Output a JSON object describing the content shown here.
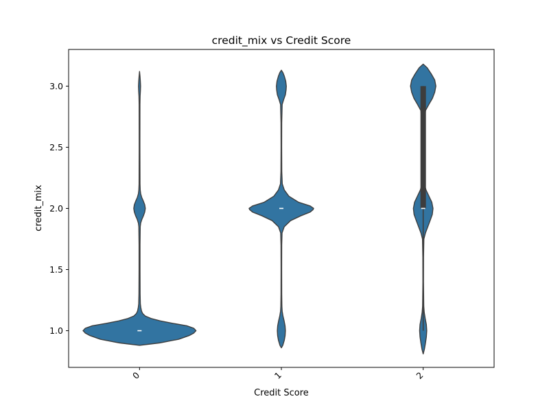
{
  "chart_data": {
    "type": "violin",
    "title": "credit_mix vs Credit Score",
    "xlabel": "Credit Score",
    "ylabel": "credit_mix",
    "categories": [
      "0",
      "1",
      "2"
    ],
    "ylim": [
      0.7,
      3.3
    ],
    "yticks": [
      1.0,
      1.5,
      2.0,
      2.5,
      3.0
    ],
    "ytick_labels": [
      "1.0",
      "1.5",
      "2.0",
      "2.5",
      "3.0"
    ],
    "xtick_rotation": 45,
    "grid": false,
    "colors": {
      "violin_fill": "#3274a1",
      "violin_edge": "#3d3d3d",
      "median": "#ffffff",
      "box": "#3d3d3d"
    },
    "violins": [
      {
        "category": "0",
        "median": 1.0,
        "q1": 1.0,
        "q3": 1.0,
        "whisker_low": 1.0,
        "whisker_high": 1.0,
        "profile": [
          [
            0.88,
            0.0
          ],
          [
            0.9,
            0.35
          ],
          [
            0.93,
            0.68
          ],
          [
            0.96,
            0.86
          ],
          [
            0.98,
            0.94
          ],
          [
            1.0,
            0.98
          ],
          [
            1.02,
            0.94
          ],
          [
            1.04,
            0.82
          ],
          [
            1.06,
            0.58
          ],
          [
            1.08,
            0.36
          ],
          [
            1.1,
            0.2
          ],
          [
            1.12,
            0.1
          ],
          [
            1.14,
            0.055
          ],
          [
            1.16,
            0.035
          ],
          [
            1.19,
            0.022
          ],
          [
            1.22,
            0.014
          ],
          [
            1.3,
            0.01
          ],
          [
            1.5,
            0.008
          ],
          [
            1.7,
            0.008
          ],
          [
            1.85,
            0.012
          ],
          [
            1.88,
            0.02
          ],
          [
            1.91,
            0.04
          ],
          [
            1.94,
            0.068
          ],
          [
            1.97,
            0.09
          ],
          [
            2.0,
            0.1
          ],
          [
            2.03,
            0.09
          ],
          [
            2.06,
            0.066
          ],
          [
            2.09,
            0.038
          ],
          [
            2.12,
            0.02
          ],
          [
            2.15,
            0.012
          ],
          [
            2.2,
            0.008
          ],
          [
            2.5,
            0.006
          ],
          [
            2.85,
            0.007
          ],
          [
            2.92,
            0.01
          ],
          [
            2.96,
            0.015
          ],
          [
            3.0,
            0.018
          ],
          [
            3.04,
            0.014
          ],
          [
            3.08,
            0.008
          ],
          [
            3.12,
            0.0
          ]
        ]
      },
      {
        "category": "1",
        "median": 2.0,
        "q1": 2.0,
        "q3": 2.0,
        "whisker_low": 2.0,
        "whisker_high": 2.0,
        "profile": [
          [
            0.86,
            0.0
          ],
          [
            0.88,
            0.025
          ],
          [
            0.92,
            0.05
          ],
          [
            0.96,
            0.065
          ],
          [
            1.0,
            0.07
          ],
          [
            1.04,
            0.064
          ],
          [
            1.08,
            0.048
          ],
          [
            1.12,
            0.028
          ],
          [
            1.16,
            0.014
          ],
          [
            1.2,
            0.009
          ],
          [
            1.3,
            0.006
          ],
          [
            1.5,
            0.005
          ],
          [
            1.7,
            0.006
          ],
          [
            1.8,
            0.012
          ],
          [
            1.85,
            0.05
          ],
          [
            1.9,
            0.16
          ],
          [
            1.94,
            0.34
          ],
          [
            1.97,
            0.5
          ],
          [
            1.99,
            0.55
          ],
          [
            2.0,
            0.56
          ],
          [
            2.02,
            0.5
          ],
          [
            2.05,
            0.3
          ],
          [
            2.1,
            0.13
          ],
          [
            2.15,
            0.052
          ],
          [
            2.2,
            0.016
          ],
          [
            2.3,
            0.007
          ],
          [
            2.5,
            0.005
          ],
          [
            2.7,
            0.006
          ],
          [
            2.85,
            0.014
          ],
          [
            2.89,
            0.04
          ],
          [
            2.93,
            0.07
          ],
          [
            2.97,
            0.082
          ],
          [
            3.0,
            0.086
          ],
          [
            3.04,
            0.076
          ],
          [
            3.08,
            0.052
          ],
          [
            3.11,
            0.028
          ],
          [
            3.13,
            0.0
          ]
        ]
      },
      {
        "category": "2",
        "median": 2.0,
        "q1": 2.0,
        "q3": 3.0,
        "whisker_low": 1.0,
        "whisker_high": 3.0,
        "profile": [
          [
            0.81,
            0.0
          ],
          [
            0.85,
            0.022
          ],
          [
            0.9,
            0.04
          ],
          [
            0.95,
            0.055
          ],
          [
            1.0,
            0.062
          ],
          [
            1.05,
            0.055
          ],
          [
            1.1,
            0.035
          ],
          [
            1.15,
            0.018
          ],
          [
            1.2,
            0.01
          ],
          [
            1.4,
            0.005
          ],
          [
            1.6,
            0.006
          ],
          [
            1.75,
            0.012
          ],
          [
            1.8,
            0.04
          ],
          [
            1.85,
            0.08
          ],
          [
            1.9,
            0.12
          ],
          [
            1.95,
            0.158
          ],
          [
            2.0,
            0.17
          ],
          [
            2.05,
            0.15
          ],
          [
            2.1,
            0.1
          ],
          [
            2.15,
            0.05
          ],
          [
            2.2,
            0.02
          ],
          [
            2.3,
            0.008
          ],
          [
            2.6,
            0.006
          ],
          [
            2.8,
            0.04
          ],
          [
            2.85,
            0.098
          ],
          [
            2.9,
            0.16
          ],
          [
            2.95,
            0.2
          ],
          [
            3.0,
            0.22
          ],
          [
            3.05,
            0.2
          ],
          [
            3.1,
            0.14
          ],
          [
            3.15,
            0.07
          ],
          [
            3.18,
            0.0
          ]
        ]
      }
    ]
  }
}
